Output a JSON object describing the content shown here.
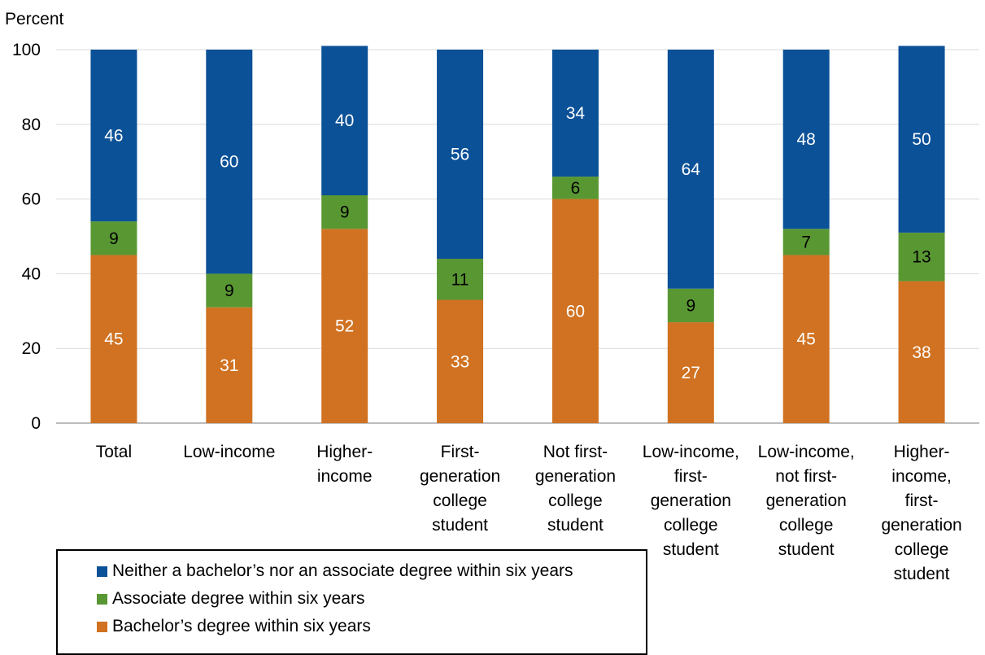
{
  "chart_data": {
    "type": "bar",
    "stacked": true,
    "ylabel": "Percent",
    "ylim": [
      0,
      100
    ],
    "yticks": [
      0,
      20,
      40,
      60,
      80,
      100
    ],
    "grid": true,
    "legend_position": "bottom-left",
    "categories": [
      [
        "Total"
      ],
      [
        "Low-income"
      ],
      [
        "Higher-",
        "income"
      ],
      [
        "First-",
        "generation",
        "college",
        "student"
      ],
      [
        "Not first-",
        "generation",
        "college",
        "student"
      ],
      [
        "Low-income,",
        "first-",
        "generation",
        "college",
        "student"
      ],
      [
        "Low-income,",
        "not first-",
        "generation",
        "college",
        "student"
      ],
      [
        "Higher-",
        "income,",
        "first-",
        "generation",
        "college",
        "student"
      ]
    ],
    "series": [
      {
        "name": "Bachelor’s degree within six years",
        "color": "#D07221",
        "values": [
          45,
          31,
          52,
          33,
          60,
          27,
          45,
          38
        ],
        "label_color": "#ffffff"
      },
      {
        "name": "Associate degree within six years",
        "color": "#599733",
        "values": [
          9,
          9,
          9,
          11,
          6,
          9,
          7,
          13
        ],
        "label_color": "#000000"
      },
      {
        "name": "Neither a bachelor’s nor an associate degree within six years",
        "color": "#0B5197",
        "values": [
          46,
          60,
          40,
          56,
          34,
          64,
          48,
          50
        ],
        "label_color": "#ffffff"
      }
    ]
  }
}
